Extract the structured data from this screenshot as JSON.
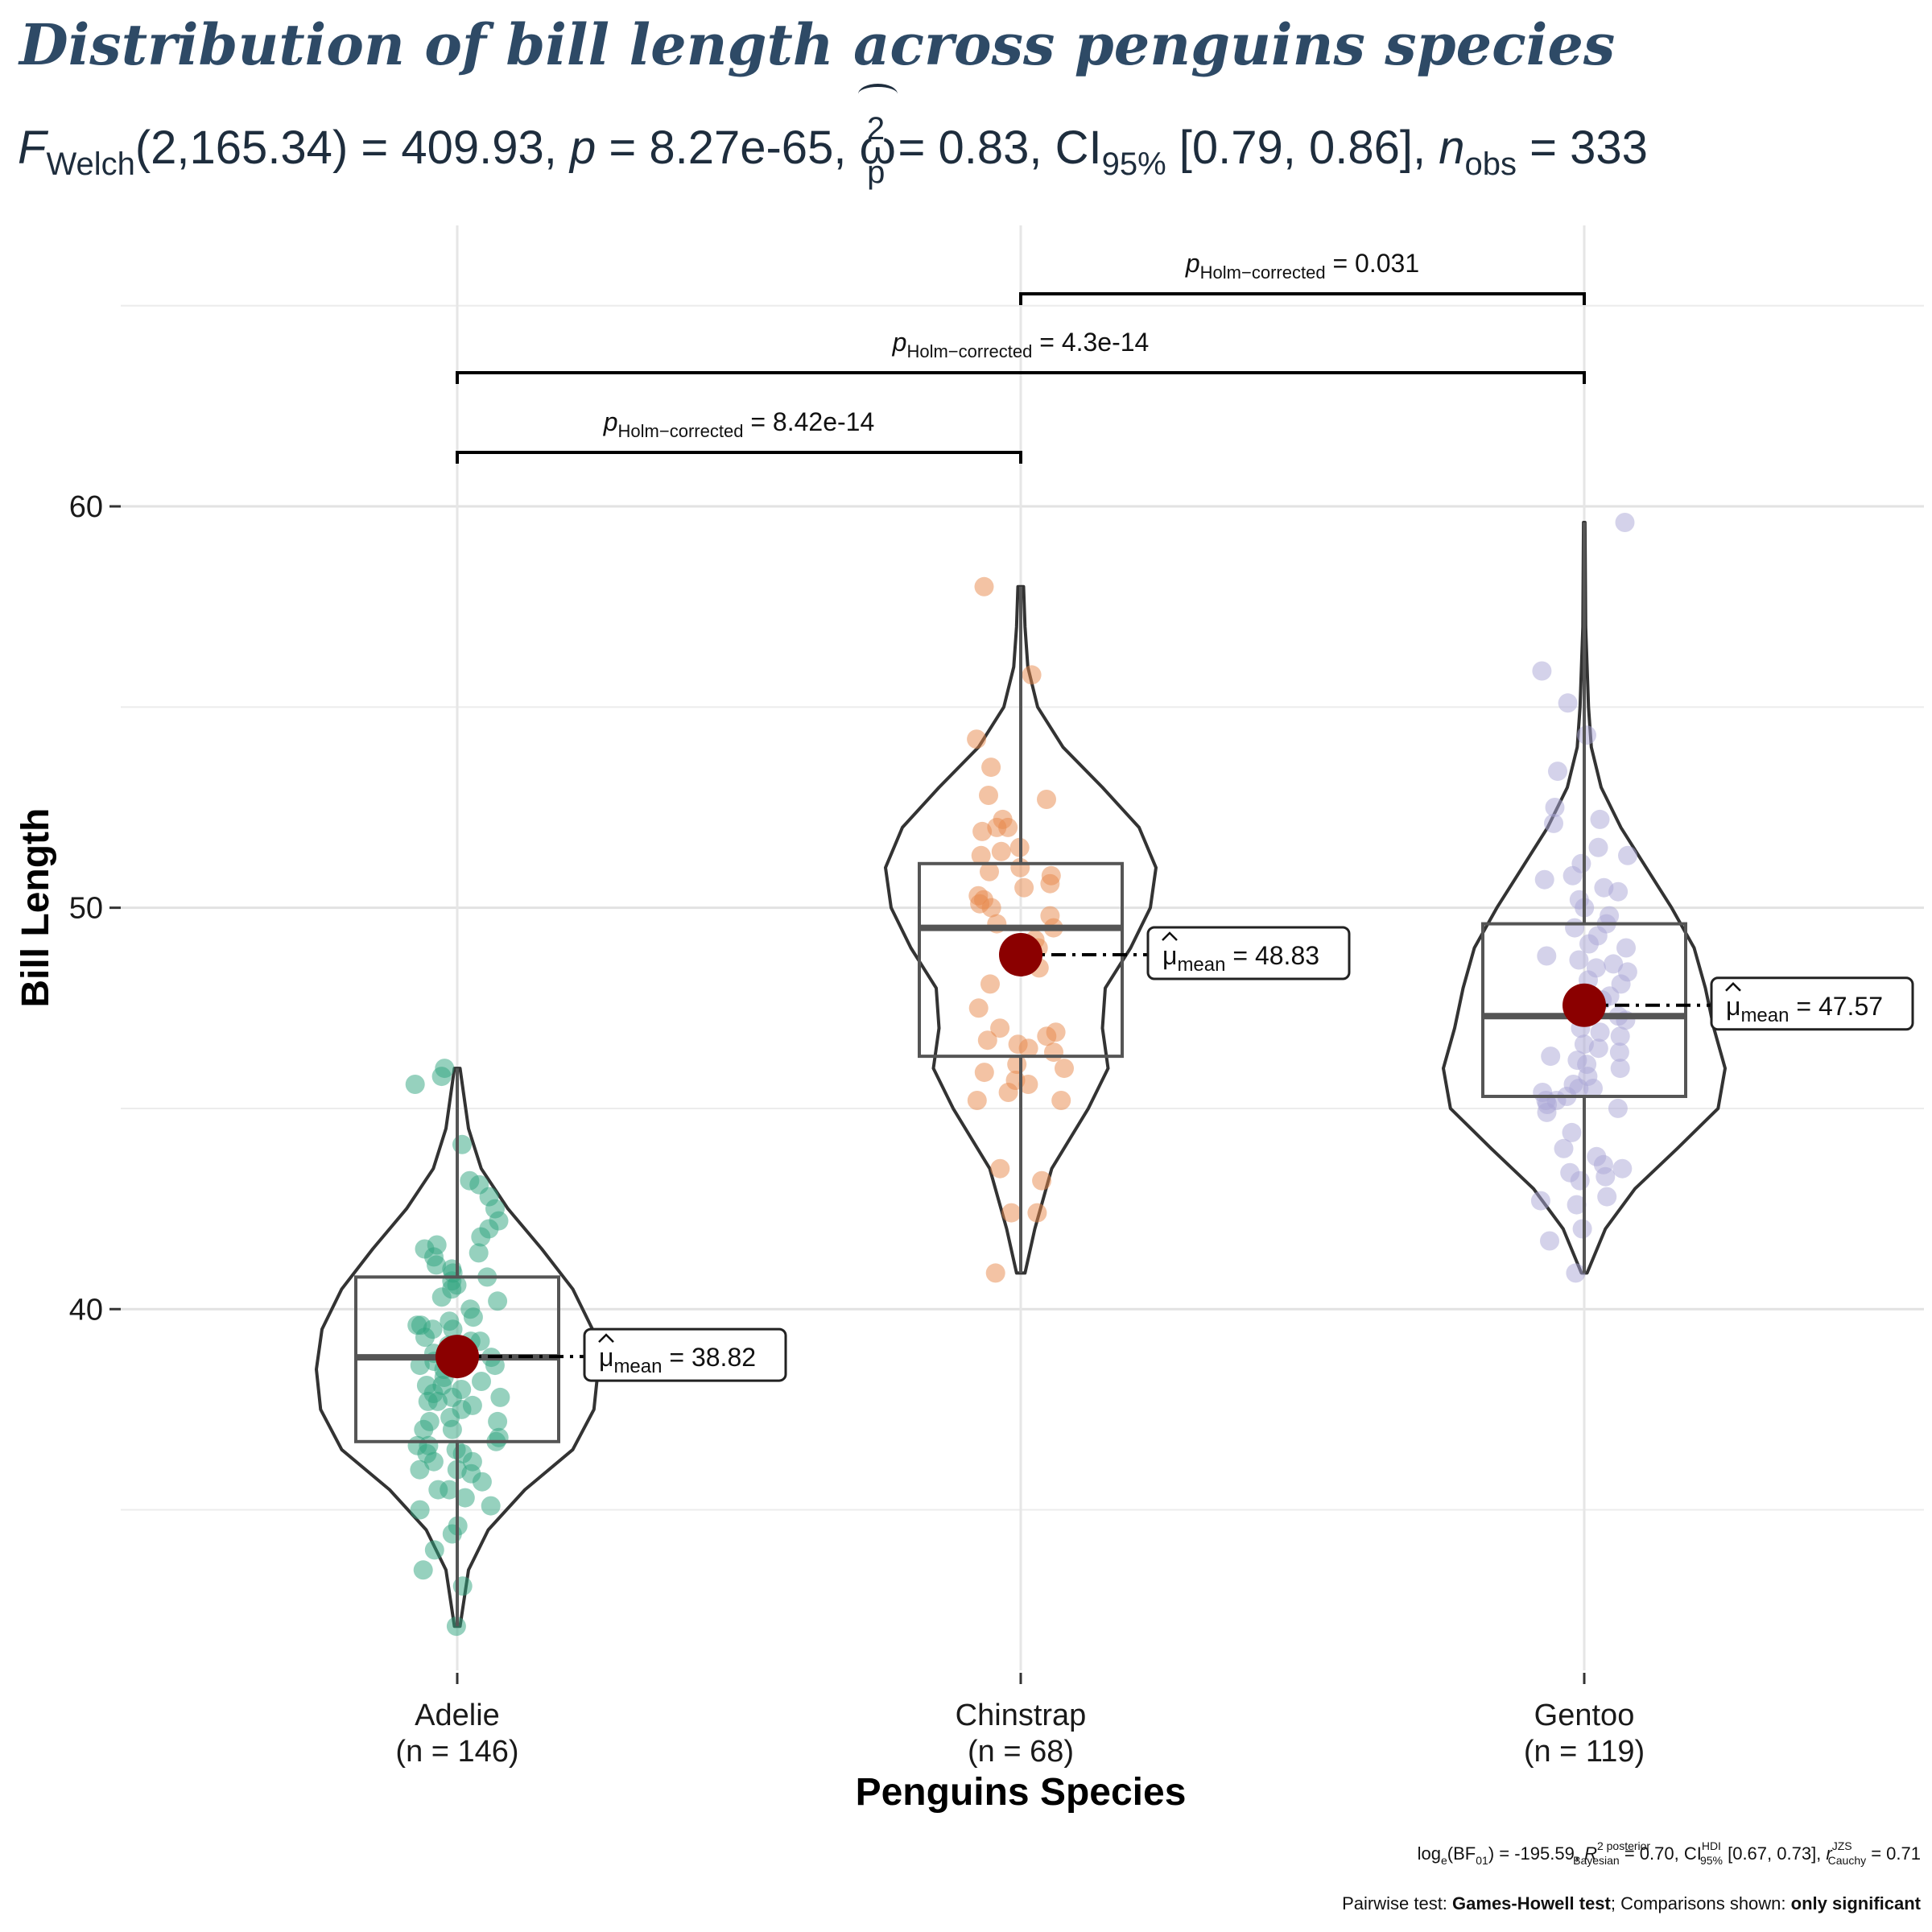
{
  "title": "Distribution of bill length across penguins species",
  "subtitle": {
    "F": "F",
    "welch": "Welch",
    "df": "(2,165.34) = 409.93, ",
    "p_sym": "p",
    "p_val": " = 8.27e-65, ",
    "omega": "ω",
    "omega_sup": "2",
    "omega_sub": "p",
    "omega_val": " = 0.83, CI",
    "ci_sub": "95%",
    "ci_val": " [0.79, 0.86], ",
    "n_sym": "n",
    "n_sub": "obs",
    "n_val": " = 333"
  },
  "caption": {
    "bf_pre": "log",
    "bf_e": "e",
    "bf_mid": "(BF",
    "bf_01": "01",
    "bf_val": ") = -195.59, ",
    "r_sym": "R",
    "r_sup": "2 posterior",
    "r_sub": "Bayesian",
    "r_val": " = 0.70, CI",
    "hdi_sup": "HDI",
    "hdi_sub": "95%",
    "hdi_val": " [0.67, 0.73], ",
    "rc_sym": "r",
    "rc_sup": "JZS",
    "rc_sub": "Cauchy",
    "rc_val": " = 0.71",
    "pairwise_label": "Pairwise test: ",
    "pairwise_test": "Games-Howell test",
    "comparisons_label": "; Comparisons shown: ",
    "comparisons_value": "only significant"
  },
  "chart_data": {
    "type": "violin-box-scatter",
    "title": "Distribution of bill length across penguins species",
    "xlabel": "Penguins Species",
    "ylabel": "Bill Length",
    "ylim": [
      31,
      67
    ],
    "yticks": [
      40,
      50,
      60
    ],
    "ytick_labels": [
      "40",
      "50",
      "60"
    ],
    "grid": true,
    "groups": [
      {
        "name": "Adelie",
        "n_label": "(n = 146)",
        "color": "#2ea37d",
        "mean": 38.82,
        "mean_label_sym": "μ",
        "mean_label_sub": "mean",
        "mean_label_val": " = 38.82",
        "q1": 36.7,
        "median": 38.8,
        "q3": 40.8,
        "min": 32.1,
        "max": 46.0,
        "density": [
          [
            32.1,
            0.02
          ],
          [
            33.5,
            0.08
          ],
          [
            34.5,
            0.22
          ],
          [
            35.5,
            0.48
          ],
          [
            36.5,
            0.82
          ],
          [
            37.5,
            0.97
          ],
          [
            38.5,
            1.0
          ],
          [
            39.5,
            0.96
          ],
          [
            40.5,
            0.82
          ],
          [
            41.5,
            0.6
          ],
          [
            42.5,
            0.36
          ],
          [
            43.5,
            0.17
          ],
          [
            44.5,
            0.08
          ],
          [
            45.5,
            0.04
          ],
          [
            46.0,
            0.02
          ]
        ],
        "points": [
          32.1,
          33.1,
          33.5,
          34.0,
          34.4,
          34.6,
          35.0,
          35.1,
          35.3,
          35.5,
          35.5,
          35.7,
          35.9,
          36.0,
          36.0,
          36.2,
          36.2,
          36.4,
          36.4,
          36.5,
          36.6,
          36.6,
          36.7,
          36.8,
          37.0,
          37.0,
          37.2,
          37.2,
          37.3,
          37.5,
          37.6,
          37.7,
          37.7,
          37.8,
          37.8,
          37.9,
          38.0,
          38.1,
          38.1,
          38.2,
          38.3,
          38.5,
          38.6,
          38.6,
          38.7,
          38.8,
          38.8,
          38.9,
          39.0,
          39.1,
          39.2,
          39.2,
          39.3,
          39.5,
          39.5,
          39.6,
          39.6,
          39.7,
          39.8,
          40.0,
          40.2,
          40.3,
          40.5,
          40.6,
          40.7,
          40.8,
          40.9,
          41.0,
          41.1,
          41.3,
          41.4,
          41.5,
          41.6,
          41.8,
          42.0,
          42.2,
          42.5,
          42.8,
          43.1,
          43.2,
          44.1,
          45.6,
          45.8,
          46.0
        ]
      },
      {
        "name": "Chinstrap",
        "n_label": "(n = 68)",
        "color": "#e8884a",
        "mean": 48.83,
        "mean_label_sym": "μ",
        "mean_label_sub": "mean",
        "mean_label_val": " = 48.83",
        "q1": 46.3,
        "median": 49.5,
        "q3": 51.1,
        "min": 40.9,
        "max": 58.0,
        "density": [
          [
            40.9,
            0.03
          ],
          [
            42.0,
            0.1
          ],
          [
            43.5,
            0.22
          ],
          [
            45.0,
            0.48
          ],
          [
            46.0,
            0.62
          ],
          [
            47.0,
            0.58
          ],
          [
            48.0,
            0.6
          ],
          [
            49.0,
            0.78
          ],
          [
            50.0,
            0.92
          ],
          [
            51.0,
            0.96
          ],
          [
            52.0,
            0.84
          ],
          [
            53.0,
            0.58
          ],
          [
            54.0,
            0.3
          ],
          [
            55.0,
            0.12
          ],
          [
            56.0,
            0.05
          ],
          [
            57.0,
            0.03
          ],
          [
            58.0,
            0.02
          ]
        ],
        "points": [
          40.9,
          42.4,
          42.4,
          43.2,
          43.5,
          45.2,
          45.2,
          45.4,
          45.6,
          45.7,
          45.9,
          46.0,
          46.1,
          46.4,
          46.5,
          46.6,
          46.7,
          46.8,
          46.9,
          47.0,
          47.5,
          48.1,
          48.5,
          49.0,
          49.2,
          49.5,
          49.6,
          49.8,
          50.0,
          50.1,
          50.2,
          50.3,
          50.5,
          50.6,
          50.8,
          50.9,
          51.0,
          51.3,
          51.4,
          51.5,
          51.9,
          52.0,
          52.0,
          52.2,
          52.7,
          52.8,
          53.5,
          54.2,
          55.8,
          58.0
        ]
      },
      {
        "name": "Gentoo",
        "n_label": "(n = 119)",
        "color": "#a9a6d6",
        "mean": 47.57,
        "mean_label_sym": "μ",
        "mean_label_sub": "mean",
        "mean_label_val": " = 47.57",
        "q1": 45.3,
        "median": 47.3,
        "q3": 49.6,
        "min": 40.9,
        "max": 59.6,
        "density": [
          [
            40.9,
            0.02
          ],
          [
            42.0,
            0.15
          ],
          [
            43.0,
            0.36
          ],
          [
            44.0,
            0.66
          ],
          [
            45.0,
            0.95
          ],
          [
            46.0,
            1.0
          ],
          [
            47.0,
            0.92
          ],
          [
            48.0,
            0.86
          ],
          [
            49.0,
            0.78
          ],
          [
            50.0,
            0.62
          ],
          [
            51.0,
            0.44
          ],
          [
            52.0,
            0.26
          ],
          [
            53.0,
            0.12
          ],
          [
            54.0,
            0.05
          ],
          [
            55.0,
            0.03
          ],
          [
            57.0,
            0.01
          ],
          [
            59.6,
            0.005
          ]
        ],
        "points": [
          40.9,
          41.7,
          42.0,
          42.6,
          42.7,
          42.8,
          43.2,
          43.3,
          43.4,
          43.5,
          43.6,
          43.8,
          44.0,
          44.4,
          44.9,
          45.0,
          45.1,
          45.2,
          45.2,
          45.3,
          45.4,
          45.5,
          45.5,
          45.6,
          45.8,
          46.0,
          46.1,
          46.2,
          46.3,
          46.4,
          46.5,
          46.6,
          46.8,
          46.9,
          47.0,
          47.2,
          47.3,
          47.5,
          47.6,
          47.7,
          47.8,
          48.1,
          48.2,
          48.4,
          48.5,
          48.6,
          48.7,
          48.8,
          49.0,
          49.1,
          49.3,
          49.5,
          49.6,
          49.8,
          50.0,
          50.2,
          50.4,
          50.5,
          50.7,
          50.8,
          51.1,
          51.3,
          51.5,
          52.1,
          52.2,
          52.5,
          53.4,
          54.3,
          55.1,
          55.9,
          59.6
        ]
      }
    ],
    "comparisons": [
      {
        "from": "Adelie",
        "to": "Chinstrap",
        "sym": "p",
        "sub": "Holm−corrected",
        "val": " = 8.42e-14"
      },
      {
        "from": "Adelie",
        "to": "Gentoo",
        "sym": "p",
        "sub": "Holm−corrected",
        "val": " = 4.3e-14"
      },
      {
        "from": "Chinstrap",
        "to": "Gentoo",
        "sym": "p",
        "sub": "Holm−corrected",
        "val": " = 0.031"
      }
    ],
    "mean_marker_color": "#8b0000"
  }
}
